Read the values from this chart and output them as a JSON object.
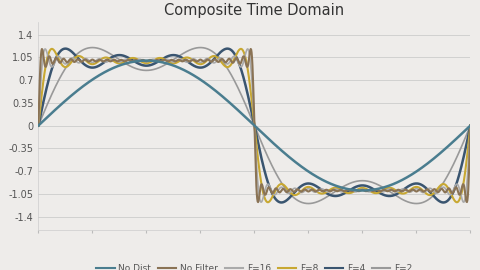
{
  "title": "Composite Time Domain",
  "background_color": "#eeecea",
  "plot_background": "#eeecea",
  "yticks": [
    -1.4,
    -1.05,
    -0.7,
    -0.35,
    0,
    0.35,
    0.7,
    1.05,
    1.4
  ],
  "ylim": [
    -1.6,
    1.6
  ],
  "series": [
    {
      "name": "No Dist",
      "color": "#4a7d8f",
      "lw": 1.8
    },
    {
      "name": "No Filter",
      "color": "#8a7355",
      "lw": 1.5
    },
    {
      "name": "F=16",
      "color": "#aaaaaa",
      "lw": 1.2
    },
    {
      "name": "F=8",
      "color": "#c8a832",
      "lw": 1.5
    },
    {
      "name": "F=4",
      "color": "#3a5570",
      "lw": 1.8
    },
    {
      "name": "F=2",
      "color": "#999999",
      "lw": 1.2
    }
  ],
  "legend_fontsize": 6.5,
  "title_fontsize": 10.5
}
